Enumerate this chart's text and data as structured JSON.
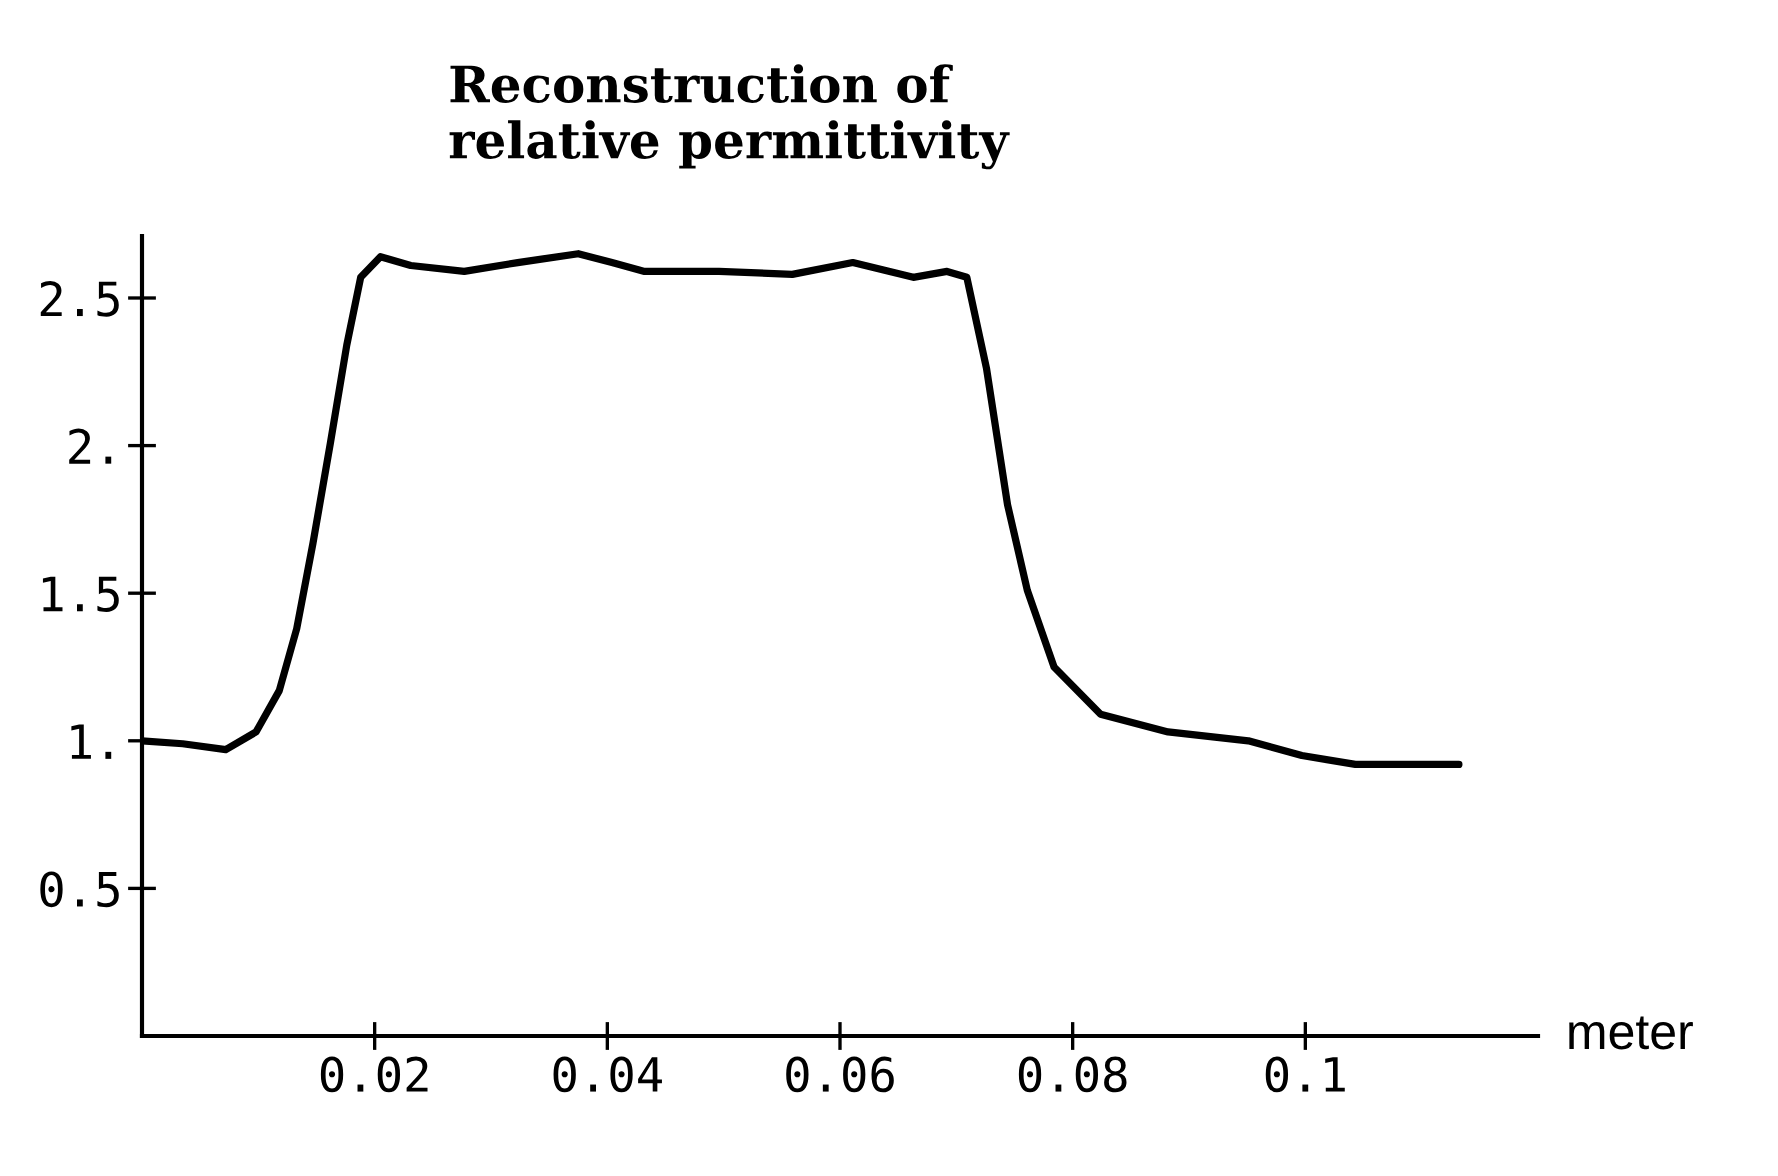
{
  "chart_data": {
    "type": "line",
    "title": "Reconstruction of\nrelative permittivity",
    "xlabel": "meter",
    "series": [
      {
        "color": "#000000",
        "x": [
          0,
          0.0035,
          0.0072,
          0.0098,
          0.0118,
          0.0133,
          0.0147,
          0.0162,
          0.0176,
          0.0188,
          0.0205,
          0.0231,
          0.0277,
          0.0323,
          0.0375,
          0.0404,
          0.0432,
          0.0496,
          0.0559,
          0.0611,
          0.0663,
          0.0692,
          0.0709,
          0.0726,
          0.0744,
          0.0761,
          0.0784,
          0.0824,
          0.0882,
          0.0951,
          0.0997,
          0.1043,
          0.1132
        ],
        "values": [
          1.0,
          0.99,
          0.97,
          1.03,
          1.17,
          1.38,
          1.67,
          2.01,
          2.34,
          2.57,
          2.64,
          2.61,
          2.59,
          2.62,
          2.65,
          2.62,
          2.59,
          2.59,
          2.58,
          2.62,
          2.57,
          2.59,
          2.57,
          2.26,
          1.8,
          1.51,
          1.25,
          1.09,
          1.03,
          1.0,
          0.95,
          0.92,
          0.92
        ]
      }
    ],
    "xlim": [
      0,
      0.12
    ],
    "ylim": [
      0,
      2.71
    ],
    "xticks": [
      0.02,
      0.04,
      0.06,
      0.08,
      0.1
    ],
    "yticks": [
      0.5,
      {
        "value": 1,
        "label": "1."
      },
      1.5,
      {
        "value": 2,
        "label": "2."
      },
      2.5
    ],
    "grid": false,
    "legend": false,
    "marker": "none",
    "line_style": "solid"
  }
}
